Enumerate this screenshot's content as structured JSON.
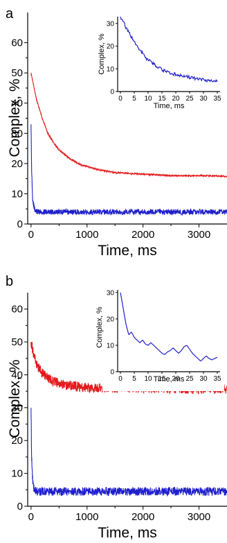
{
  "chart_data": [
    {
      "type": "line",
      "panel_label": "a",
      "xlabel": "Time, ms",
      "ylabel": "Complex, %",
      "xlim": [
        -60,
        3500
      ],
      "ylim": [
        0,
        70
      ],
      "xticks": [
        0,
        1000,
        2000,
        3000
      ],
      "xtick_labels": [
        "0",
        "1000",
        "2000",
        "3000"
      ],
      "yticks": [
        0,
        10,
        20,
        30,
        40,
        50,
        60
      ],
      "ytick_labels": [
        "0",
        "10",
        "20",
        "30",
        "40",
        "50",
        "60"
      ],
      "series": [
        {
          "color": "#e31a1c",
          "x": [
            0,
            50,
            100,
            200,
            300,
            400,
            500,
            700,
            900,
            1200,
            1500,
            2000,
            2500,
            3000,
            3500
          ],
          "y": [
            50,
            45.5,
            41,
            35,
            30,
            27,
            24.5,
            21.5,
            19.5,
            18,
            17,
            16.5,
            16,
            16,
            15.8
          ]
        },
        {
          "color": "#1f1fcc",
          "x": [
            0,
            10,
            30,
            60,
            100,
            500,
            1000,
            2000,
            3000,
            3500
          ],
          "y": [
            33,
            18,
            8,
            5,
            4,
            4,
            4,
            4,
            4,
            4
          ]
        }
      ],
      "inset": {
        "xlabel": "Time, ms",
        "ylabel": "Complex, %",
        "xlim": [
          -1,
          36
        ],
        "ylim": [
          0,
          33
        ],
        "xticks": [
          0,
          5,
          10,
          15,
          20,
          25,
          30,
          35
        ],
        "xtick_labels": [
          "0",
          "5",
          "10",
          "15",
          "20",
          "25",
          "30",
          "35"
        ],
        "yticks": [
          0,
          10,
          20,
          30
        ],
        "ytick_labels": [
          "0",
          "10",
          "20",
          "30"
        ],
        "series": [
          {
            "color": "#1f1fcc",
            "x": [
              0,
              1,
              2,
              3,
              4,
              5,
              6,
              7,
              8,
              9,
              10,
              12,
              14,
              16,
              18,
              20,
              22,
              24,
              26,
              28,
              30,
              32,
              34,
              35
            ],
            "y": [
              33,
              31,
              28,
              26,
              24,
              22,
              20,
              18,
              17,
              15,
              14,
              12,
              10.5,
              9,
              8,
              7.5,
              7,
              6.5,
              6,
              5.5,
              5,
              5,
              4.5,
              5
            ]
          }
        ]
      }
    },
    {
      "type": "line",
      "panel_label": "b",
      "xlabel": "Time, ms",
      "ylabel": "Complex, %",
      "xlim": [
        -60,
        3500
      ],
      "ylim": [
        0,
        65
      ],
      "xticks": [
        0,
        1000,
        2000,
        3000
      ],
      "xtick_labels": [
        "0",
        "1000",
        "2000",
        "3000"
      ],
      "yticks": [
        0,
        10,
        20,
        30,
        40,
        50,
        60
      ],
      "ytick_labels": [
        "0",
        "10",
        "20",
        "30",
        "40",
        "50",
        "60"
      ],
      "series": [
        {
          "color": "#e31a1c",
          "x": [
            0,
            50,
            100,
            200,
            300,
            400,
            600,
            800,
            1000,
            1500,
            2000,
            2500,
            3000,
            3500
          ],
          "y": [
            50,
            46,
            43,
            40.5,
            39,
            38,
            37,
            36.5,
            36,
            36,
            35.8,
            35.8,
            35.7,
            35.7
          ]
        },
        {
          "color": "#1f1fcc",
          "x": [
            0,
            10,
            30,
            60,
            100,
            500,
            1000,
            2000,
            3000,
            3500
          ],
          "y": [
            30,
            15,
            7,
            5,
            4.5,
            4.5,
            4.5,
            4.5,
            4.5,
            4.5
          ]
        }
      ],
      "inset": {
        "xlabel": "Time, ms",
        "ylabel": "Complex, %",
        "xlim": [
          -1,
          36
        ],
        "ylim": [
          0,
          31
        ],
        "xticks": [
          0,
          5,
          10,
          15,
          20,
          25,
          30,
          35
        ],
        "xtick_labels": [
          "0",
          "5",
          "10",
          "15",
          "20",
          "25",
          "30",
          "35"
        ],
        "yticks": [
          0,
          10,
          20,
          30
        ],
        "ytick_labels": [
          "0",
          "10",
          "20",
          "30"
        ],
        "series": [
          {
            "color": "#1f1fcc",
            "x": [
              0,
              1,
              2,
              3,
              4,
              5,
              6,
              7,
              8,
              9,
              10,
              11,
              12,
              13,
              14,
              15,
              16,
              17,
              18,
              19,
              20,
              21,
              22,
              23,
              24,
              25,
              26,
              27,
              28,
              29,
              30,
              31,
              32,
              33,
              34,
              35
            ],
            "y": [
              30,
              24,
              18,
              14,
              15,
              13,
              12,
              11,
              12,
              10.5,
              10,
              11,
              10,
              9,
              8,
              7,
              6.5,
              7.5,
              8,
              9,
              8,
              7,
              8,
              9.5,
              10,
              8.5,
              7,
              6,
              5,
              4,
              5,
              6,
              5,
              4.5,
              5,
              5.5
            ]
          }
        ]
      }
    }
  ]
}
